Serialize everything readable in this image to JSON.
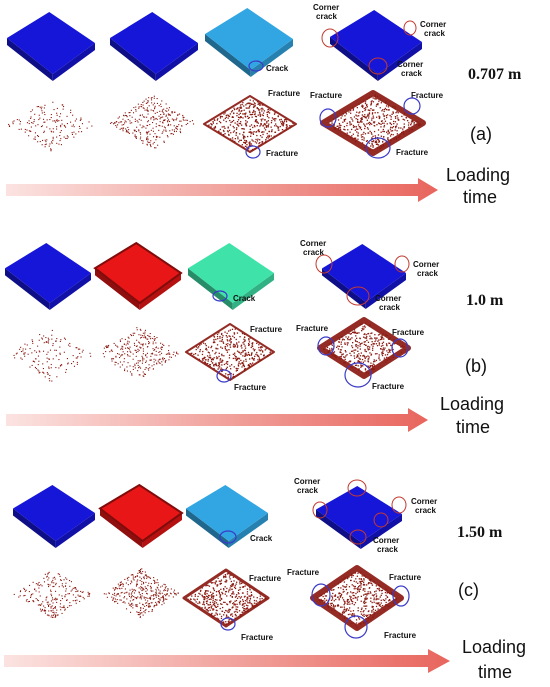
{
  "colors": {
    "blue": "#1616d8",
    "blue_top": "#1f22e6",
    "cyan": "#32a6e2",
    "red": "#e81616",
    "teal": "#3fe3a9",
    "fracture": "#8b1a12",
    "circle_red": "#c33a2f",
    "circle_blue": "#3a3ac8"
  },
  "labels": {
    "crack": "Crack",
    "corner_crack": "Corner\ncrack",
    "fracture": "Fracture"
  },
  "panels": [
    {
      "id": "a",
      "size": "0.707 m",
      "label": "(a)",
      "loading": "Loading",
      "time": "time",
      "top_colors": [
        "blue",
        "blue",
        "cyan",
        "blue"
      ]
    },
    {
      "id": "b",
      "size": "1.0 m",
      "label": "(b)",
      "loading": "Loading",
      "time": "time",
      "top_colors": [
        "blue",
        "red",
        "teal",
        "blue"
      ]
    },
    {
      "id": "c",
      "size": "1.50 m",
      "label": "(c)",
      "loading": "Loading",
      "time": "time",
      "top_colors": [
        "blue",
        "red",
        "cyan",
        "blue"
      ]
    }
  ]
}
